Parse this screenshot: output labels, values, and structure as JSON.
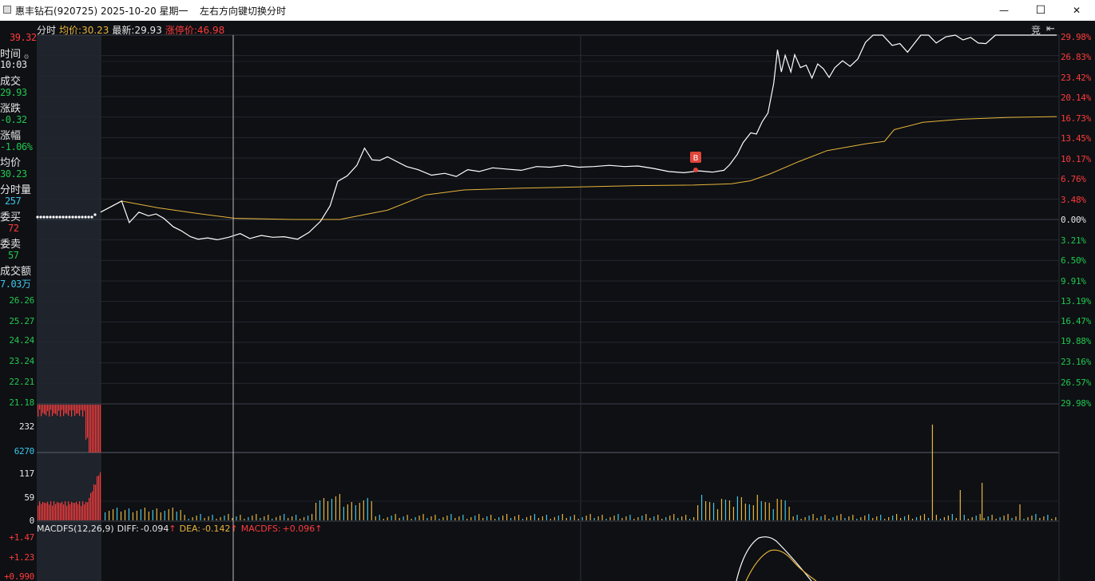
{
  "window": {
    "title": "惠丰钻石(920725) 2025-10-20 星期一",
    "hint": "左右方向键切换分时",
    "minimize_glyph": "—",
    "maximize_glyph": "☐",
    "close_glyph": "✕"
  },
  "header": {
    "mode": "分时",
    "avg_label": "均价:",
    "avg_value": "30.23",
    "latest_label": "最新:",
    "latest_value": "29.93",
    "limit_label": "涨停价:",
    "limit_value": "46.98",
    "auction_label": "竞"
  },
  "info_panel": {
    "time_label": "时间",
    "time_value": "10:03",
    "deal_label": "成交",
    "deal_value": "29.93",
    "change_label": "涨跌",
    "change_value": "-0.32",
    "pct_label": "涨幅",
    "pct_value": "-1.06%",
    "avg_label": "均价",
    "avg_value": "30.23",
    "vol_label": "分时量",
    "vol_value": "257",
    "bid_label": "委买",
    "bid_value": "72",
    "ask_label": "委卖",
    "ask_value": "57",
    "amount_label": "成交额",
    "amount_value": "7.03万"
  },
  "price_axis_left": [
    "39.32",
    "26.26",
    "25.27",
    "24.24",
    "23.24",
    "22.21",
    "21.18"
  ],
  "price_axis_right": [
    "29.98%",
    "26.83%",
    "23.42%",
    "20.14%",
    "16.73%",
    "13.45%",
    "10.17%",
    "6.76%",
    "3.48%",
    "0.00%",
    "3.21%",
    "6.50%",
    "9.91%",
    "13.19%",
    "16.47%",
    "19.88%",
    "23.16%",
    "26.57%",
    "29.98%"
  ],
  "volume_axis": {
    "auction_level": "232",
    "current": "6270",
    "mid": "117",
    "low": "59",
    "zero": "0"
  },
  "macd": {
    "name": "MACDFS(12,26,9)",
    "diff_label": "DIFF:",
    "diff_value": "-0.094",
    "dea_label": "DEA:",
    "dea_value": "-0.142",
    "macdfs_label": "MACDFS:",
    "macdfs_value": "+0.096",
    "axis": [
      "+1.47",
      "+1.23",
      "+0.990"
    ]
  },
  "markers": {
    "buy": "B"
  },
  "colors": {
    "up": "#ff3b3b",
    "down": "#22c74f",
    "price_line": "#ffffff",
    "avg_line": "#e8b43a",
    "volume_down": "#3ec6e8",
    "background": "#0e1014",
    "auction_bg": "#1f242c"
  },
  "chart_data": {
    "type": "line",
    "title": "",
    "x_unit": "session progress",
    "y_unit": "percent change vs previous close",
    "ylim": [
      -29.98,
      29.98
    ],
    "series": [
      {
        "color": "#ffffff",
        "values": [
          [
            0.0,
            1.2
          ],
          [
            0.022,
            3.0
          ],
          [
            0.03,
            -0.5
          ],
          [
            0.04,
            1.2
          ],
          [
            0.05,
            0.6
          ],
          [
            0.058,
            0.9
          ],
          [
            0.066,
            0.2
          ],
          [
            0.076,
            -1.2
          ],
          [
            0.084,
            -1.8
          ],
          [
            0.094,
            -2.8
          ],
          [
            0.102,
            -3.2
          ],
          [
            0.112,
            -3.0
          ],
          [
            0.122,
            -3.3
          ],
          [
            0.134,
            -2.9
          ],
          [
            0.146,
            -2.3
          ],
          [
            0.156,
            -3.1
          ],
          [
            0.168,
            -2.6
          ],
          [
            0.18,
            -2.9
          ],
          [
            0.192,
            -2.8
          ],
          [
            0.206,
            -3.2
          ],
          [
            0.218,
            -2.1
          ],
          [
            0.23,
            -0.3
          ],
          [
            0.24,
            2.2
          ],
          [
            0.248,
            6.2
          ],
          [
            0.258,
            7.1
          ],
          [
            0.268,
            8.8
          ],
          [
            0.276,
            11.6
          ],
          [
            0.284,
            9.7
          ],
          [
            0.292,
            9.6
          ],
          [
            0.3,
            10.2
          ],
          [
            0.31,
            9.4
          ],
          [
            0.32,
            8.6
          ],
          [
            0.332,
            8.1
          ],
          [
            0.346,
            7.2
          ],
          [
            0.36,
            7.5
          ],
          [
            0.372,
            7.0
          ],
          [
            0.384,
            8.1
          ],
          [
            0.396,
            7.8
          ],
          [
            0.41,
            8.4
          ],
          [
            0.424,
            8.2
          ],
          [
            0.44,
            8.0
          ],
          [
            0.456,
            8.6
          ],
          [
            0.47,
            8.5
          ],
          [
            0.486,
            8.8
          ],
          [
            0.5,
            8.5
          ],
          [
            0.516,
            8.6
          ],
          [
            0.532,
            8.8
          ],
          [
            0.548,
            8.6
          ],
          [
            0.562,
            8.7
          ],
          [
            0.578,
            8.3
          ],
          [
            0.594,
            7.8
          ],
          [
            0.61,
            7.6
          ],
          [
            0.626,
            7.9
          ],
          [
            0.64,
            7.7
          ],
          [
            0.652,
            8.0
          ],
          [
            0.658,
            8.9
          ],
          [
            0.666,
            10.6
          ],
          [
            0.672,
            12.5
          ],
          [
            0.68,
            14.1
          ],
          [
            0.686,
            13.9
          ],
          [
            0.692,
            15.9
          ],
          [
            0.698,
            17.3
          ],
          [
            0.704,
            22.1
          ],
          [
            0.708,
            27.6
          ],
          [
            0.712,
            24.0
          ],
          [
            0.716,
            26.7
          ],
          [
            0.722,
            24.0
          ],
          [
            0.726,
            26.8
          ],
          [
            0.732,
            24.7
          ],
          [
            0.738,
            25.1
          ],
          [
            0.744,
            23.0
          ],
          [
            0.75,
            25.3
          ],
          [
            0.756,
            24.5
          ],
          [
            0.762,
            23.1
          ],
          [
            0.768,
            24.7
          ],
          [
            0.776,
            25.8
          ],
          [
            0.784,
            24.9
          ],
          [
            0.792,
            26.1
          ],
          [
            0.8,
            28.8
          ],
          [
            0.808,
            29.98
          ],
          [
            0.818,
            29.98
          ],
          [
            0.828,
            28.3
          ],
          [
            0.836,
            28.6
          ],
          [
            0.844,
            27.2
          ],
          [
            0.852,
            28.8
          ],
          [
            0.858,
            29.98
          ],
          [
            0.866,
            29.98
          ],
          [
            0.874,
            28.7
          ],
          [
            0.884,
            29.7
          ],
          [
            0.894,
            29.98
          ],
          [
            0.902,
            29.2
          ],
          [
            0.91,
            29.6
          ],
          [
            0.918,
            28.7
          ],
          [
            0.926,
            28.6
          ],
          [
            0.936,
            29.98
          ],
          [
            1.0,
            29.98
          ]
        ]
      },
      {
        "color": "#e8b43a",
        "values": [
          [
            0.0,
            1.2
          ],
          [
            0.022,
            3.0
          ],
          [
            0.06,
            1.9
          ],
          [
            0.1,
            1.0
          ],
          [
            0.14,
            0.2
          ],
          [
            0.2,
            0.0
          ],
          [
            0.25,
            0.0
          ],
          [
            0.3,
            1.5
          ],
          [
            0.34,
            4.0
          ],
          [
            0.38,
            4.8
          ],
          [
            0.44,
            5.1
          ],
          [
            0.5,
            5.3
          ],
          [
            0.56,
            5.5
          ],
          [
            0.62,
            5.6
          ],
          [
            0.66,
            5.8
          ],
          [
            0.68,
            6.3
          ],
          [
            0.7,
            7.4
          ],
          [
            0.73,
            9.4
          ],
          [
            0.76,
            11.2
          ],
          [
            0.8,
            12.3
          ],
          [
            0.82,
            12.7
          ],
          [
            0.83,
            14.6
          ],
          [
            0.84,
            15.0
          ],
          [
            0.86,
            15.8
          ],
          [
            0.9,
            16.3
          ],
          [
            0.95,
            16.6
          ],
          [
            1.0,
            16.73
          ]
        ]
      }
    ]
  }
}
